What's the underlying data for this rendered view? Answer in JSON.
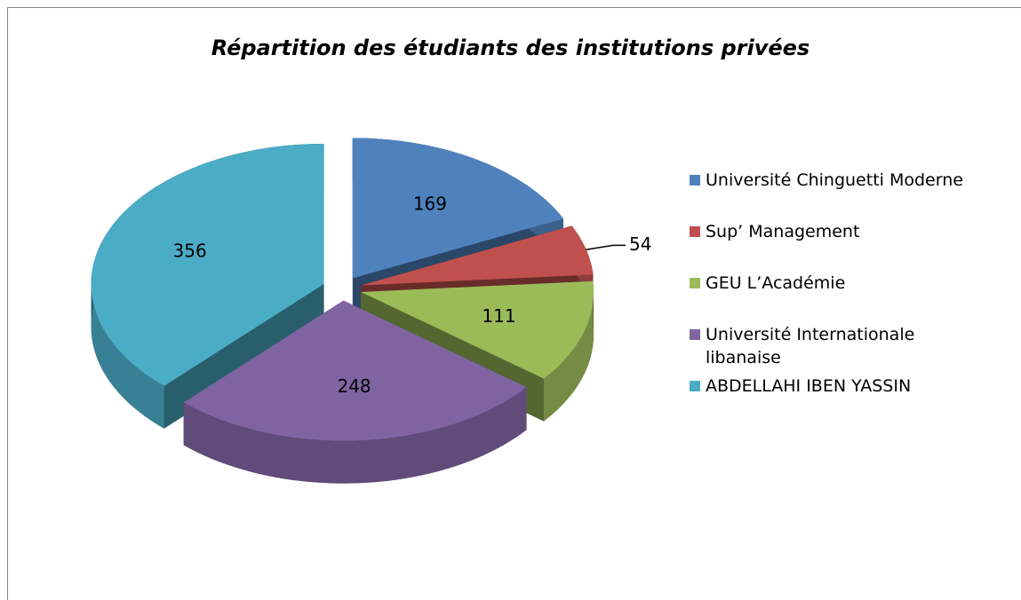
{
  "chart_data": {
    "type": "pie",
    "title": "Répartition des étudiants des institutions privées",
    "categories": [
      "Université Chinguetti Moderne",
      "Sup’ Management",
      "GEU L’Académie",
      "Université Internationale libanaise",
      "ABDELLAHI IBEN YASSIN"
    ],
    "values": [
      169,
      54,
      111,
      248,
      356
    ],
    "colors": [
      "#4f81bd",
      "#c0504d",
      "#9bbb59",
      "#8064a2",
      "#4bacc6"
    ],
    "legend": "right"
  }
}
